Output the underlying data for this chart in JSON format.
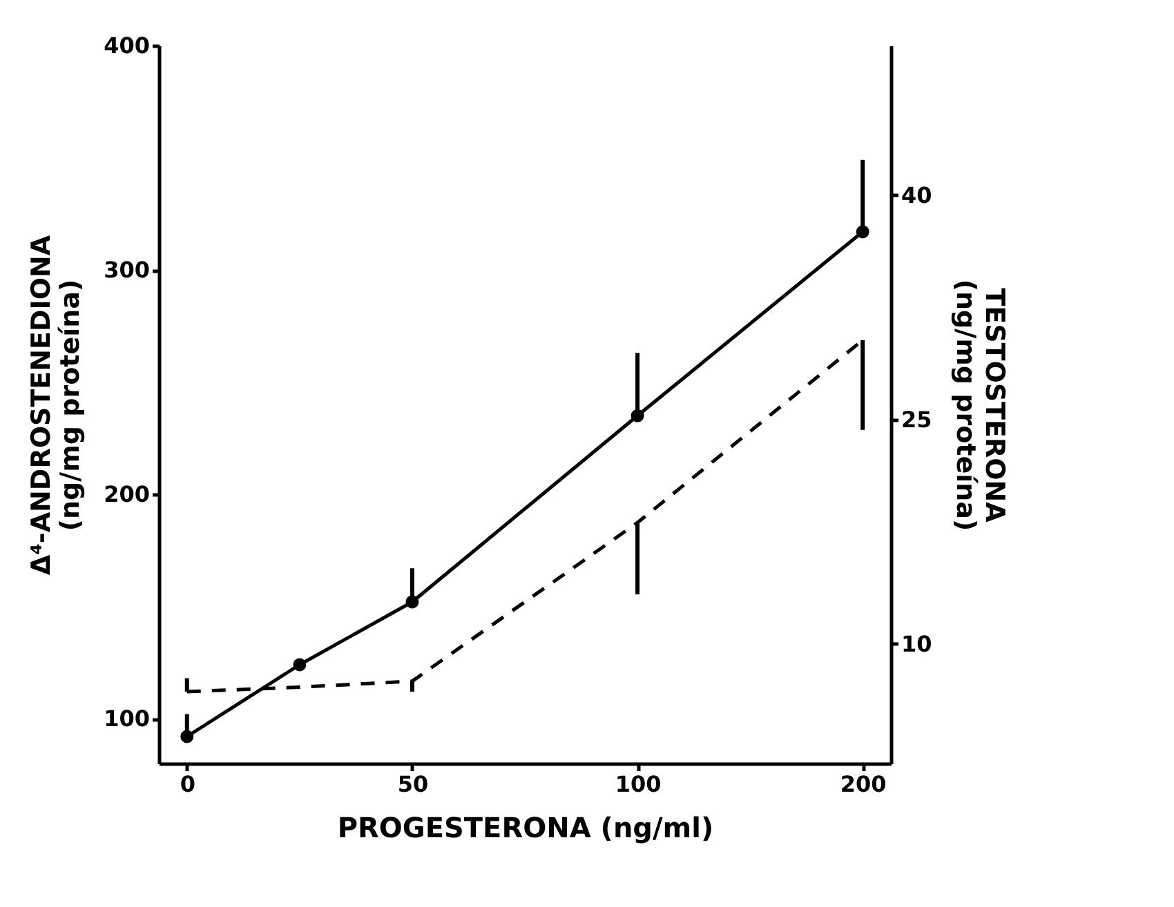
{
  "chart_data": {
    "type": "line",
    "xlabel": "PROGESTERONA (ng/ml)",
    "ylabel": "Δ⁴-ANDROSTENEDIONA\n(ng/mg proteína)",
    "y2label": "TESTOSTERONA\n(ng/mg proteína)",
    "categories": [
      "0",
      null,
      "50",
      null,
      "100",
      null,
      "200"
    ],
    "ylim": [
      80,
      400
    ],
    "yticks": [
      100,
      200,
      300,
      400
    ],
    "y2lim": [
      2,
      50
    ],
    "y2ticks": [
      10,
      25,
      40
    ],
    "grid": false,
    "series": [
      {
        "color": "#000000",
        "marker": "circle",
        "line_style": "solid",
        "values": [
          92,
          124,
          152,
          null,
          235,
          null,
          317
        ],
        "errors": [
          [
            92,
            102
          ],
          null,
          [
            152,
            167
          ],
          null,
          [
            235,
            263
          ],
          null,
          [
            317,
            349
          ]
        ]
      },
      {
        "color": "#000000",
        "marker": "none",
        "line_style": "dashed",
        "axis": "y2",
        "values": [
          6.8,
          7.1,
          7.5,
          null,
          18.1,
          null,
          30.3
        ],
        "errors": [
          [
            6.8,
            7.7
          ],
          null,
          [
            6.8,
            7.5
          ],
          null,
          [
            13.3,
            18.1
          ],
          null,
          [
            24.3,
            30.3
          ]
        ]
      }
    ]
  }
}
